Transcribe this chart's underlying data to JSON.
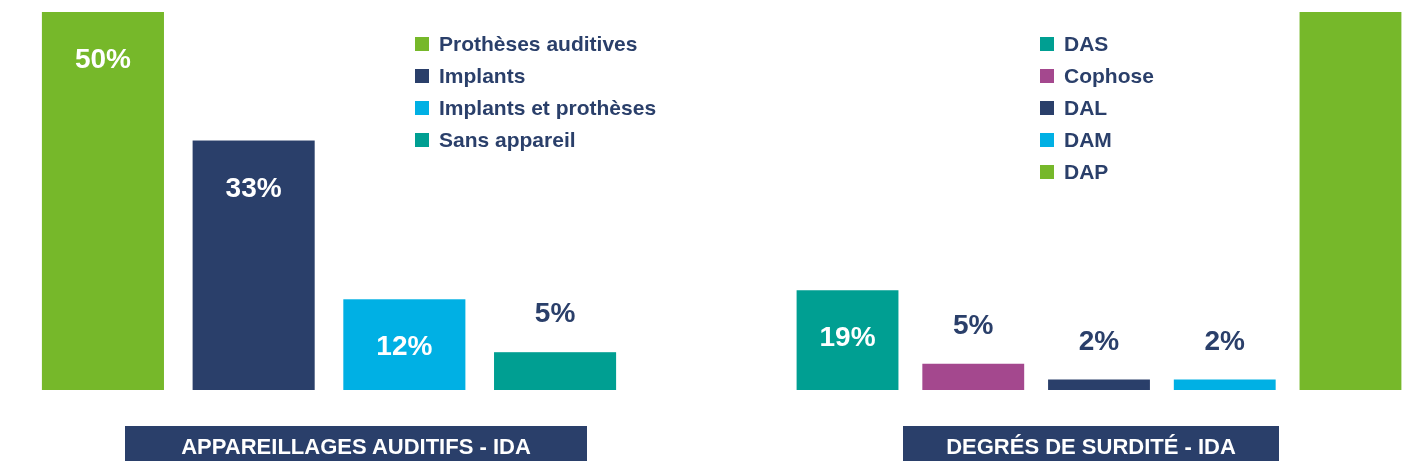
{
  "chart_data": [
    {
      "type": "bar",
      "title": "APPAREILLAGES AUDITIFS - IDA",
      "categories": [
        null
      ],
      "series": [
        {
          "name": "Prothèses auditives",
          "color": "#76b82a",
          "values": [
            50
          ],
          "value_labels": [
            "50%"
          ]
        },
        {
          "name": "Implants",
          "color": "#2a3f6a",
          "values": [
            33
          ],
          "value_labels": [
            "33%"
          ]
        },
        {
          "name": "Implants et prothèses",
          "color": "#00b0e4",
          "values": [
            12
          ],
          "value_labels": [
            "12%"
          ]
        },
        {
          "name": "Sans appareil",
          "color": "#009f92",
          "values": [
            5
          ],
          "value_labels": [
            "5%"
          ]
        }
      ],
      "ylim": [
        0,
        50
      ],
      "legend": "top",
      "tick_labels": false
    },
    {
      "type": "bar",
      "title": "DEGRÉS DE SURDITÉ - IDA",
      "categories": [
        null
      ],
      "series": [
        {
          "name": "DAS",
          "color": "#009f92",
          "values": [
            19
          ],
          "value_labels": [
            "19%"
          ]
        },
        {
          "name": "Cophose",
          "color": "#a4488e",
          "values": [
            5
          ],
          "value_labels": [
            "5%"
          ]
        },
        {
          "name": "DAL",
          "color": "#2a3f6a",
          "values": [
            2
          ],
          "value_labels": [
            "2%"
          ]
        },
        {
          "name": "DAM",
          "color": "#00b0e4",
          "values": [
            2
          ],
          "value_labels": [
            "2%"
          ]
        },
        {
          "name": "DAP",
          "color": "#76b82a",
          "values": [
            72
          ],
          "value_labels": [
            null
          ]
        }
      ],
      "legend": "top",
      "tick_labels": false
    }
  ]
}
